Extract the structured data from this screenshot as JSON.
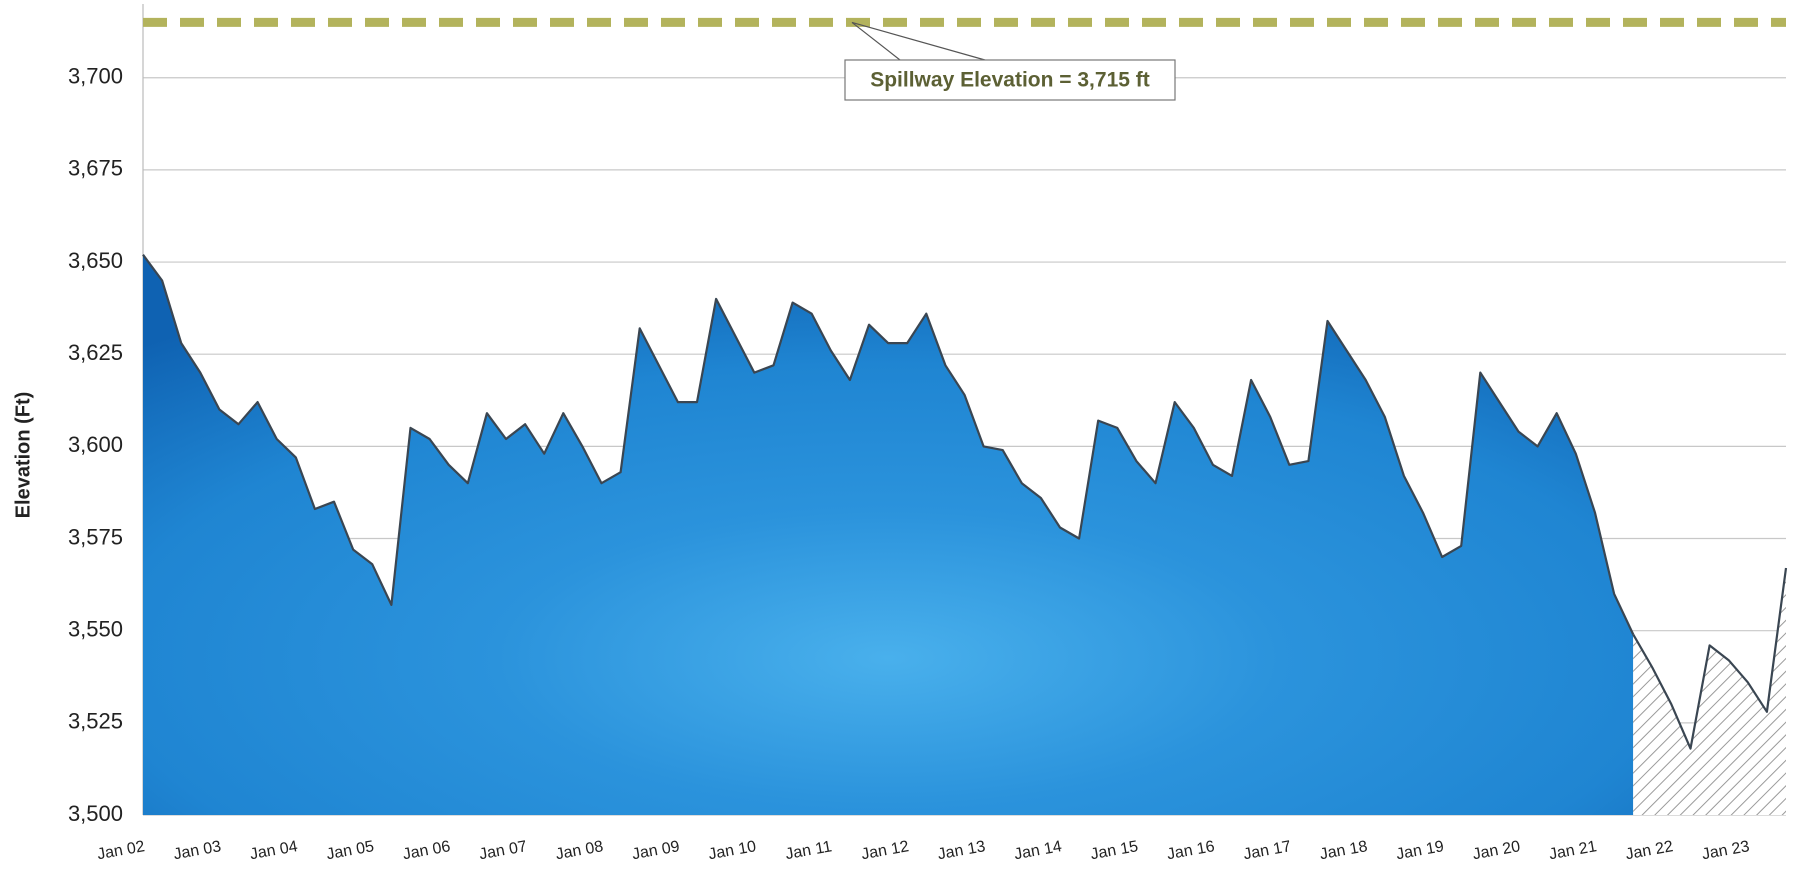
{
  "chart_data": {
    "type": "area",
    "y_label": "Elevation (Ft)",
    "categories": [
      "Jan 02",
      null,
      null,
      null,
      "Jan 03",
      null,
      null,
      null,
      "Jan 04",
      null,
      null,
      null,
      "Jan 05",
      null,
      null,
      null,
      "Jan 06",
      null,
      null,
      null,
      "Jan 07",
      null,
      null,
      null,
      "Jan 08",
      null,
      null,
      null,
      "Jan 09",
      null,
      null,
      null,
      "Jan 10",
      null,
      null,
      null,
      "Jan 11",
      null,
      null,
      null,
      "Jan 12",
      null,
      null,
      null,
      "Jan 13",
      null,
      null,
      null,
      "Jan 14",
      null,
      null,
      null,
      "Jan 15",
      null,
      null,
      null,
      "Jan 16",
      null,
      null,
      null,
      "Jan 17",
      null,
      null,
      null,
      "Jan 18",
      null,
      null,
      null,
      "Jan 19",
      null,
      null,
      null,
      "Jan 20",
      null,
      null,
      null,
      "Jan 21",
      null,
      null,
      null,
      "Jan 22",
      null,
      null,
      null,
      "Jan 23",
      null,
      null
    ],
    "series": [
      {
        "color": "#1f8ad6",
        "fill": "solid",
        "values": [
          3652,
          3645,
          3628,
          3620,
          3610,
          3606,
          3612,
          3602,
          3597,
          3583,
          3585,
          3572,
          3568,
          3557,
          3605,
          3602,
          3595,
          3590,
          3609,
          3602,
          3606,
          3598,
          3609,
          3600,
          3590,
          3593,
          3632,
          3622,
          3612,
          3612,
          3640,
          3630,
          3620,
          3622,
          3639,
          3636,
          3626,
          3618,
          3633,
          3628,
          3628,
          3636,
          3622,
          3614,
          3600,
          3599,
          3590,
          3586,
          3578,
          3575,
          3607,
          3605,
          3596,
          3590,
          3612,
          3605,
          3595,
          3592,
          3618,
          3608,
          3595,
          3596,
          3634,
          3626,
          3618,
          3608,
          3592,
          3582,
          3570,
          3573,
          3620,
          3612,
          3604,
          3600,
          3609,
          3598,
          3582,
          3560,
          3549,
          null,
          null,
          null,
          null,
          null,
          null,
          null,
          null
        ]
      },
      {
        "color": "#9a9a9a",
        "fill": "hatch",
        "values": [
          null,
          null,
          null,
          null,
          null,
          null,
          null,
          null,
          null,
          null,
          null,
          null,
          null,
          null,
          null,
          null,
          null,
          null,
          null,
          null,
          null,
          null,
          null,
          null,
          null,
          null,
          null,
          null,
          null,
          null,
          null,
          null,
          null,
          null,
          null,
          null,
          null,
          null,
          null,
          null,
          null,
          null,
          null,
          null,
          null,
          null,
          null,
          null,
          null,
          null,
          null,
          null,
          null,
          null,
          null,
          null,
          null,
          null,
          null,
          null,
          null,
          null,
          null,
          null,
          null,
          null,
          null,
          null,
          null,
          null,
          null,
          null,
          null,
          null,
          null,
          null,
          null,
          null,
          3549,
          3540,
          3530,
          3518,
          3546,
          3542,
          3536,
          3528,
          3567
        ]
      }
    ],
    "ylim": [
      3500,
      3720
    ],
    "yticks": [
      {
        "value": 3500,
        "label": "3,500"
      },
      {
        "value": 3525,
        "label": "3,525"
      },
      {
        "value": 3550,
        "label": "3,550"
      },
      {
        "value": 3575,
        "label": "3,575"
      },
      {
        "value": 3600,
        "label": "3,600"
      },
      {
        "value": 3625,
        "label": "3,625"
      },
      {
        "value": 3650,
        "label": "3,650"
      },
      {
        "value": 3675,
        "label": "3,675"
      },
      {
        "value": 3700,
        "label": "3,700"
      }
    ],
    "grid": true,
    "reference_line": {
      "value": 3715,
      "label": "Spillway Elevation = 3,715 ft",
      "color": "#b3b35c"
    }
  }
}
